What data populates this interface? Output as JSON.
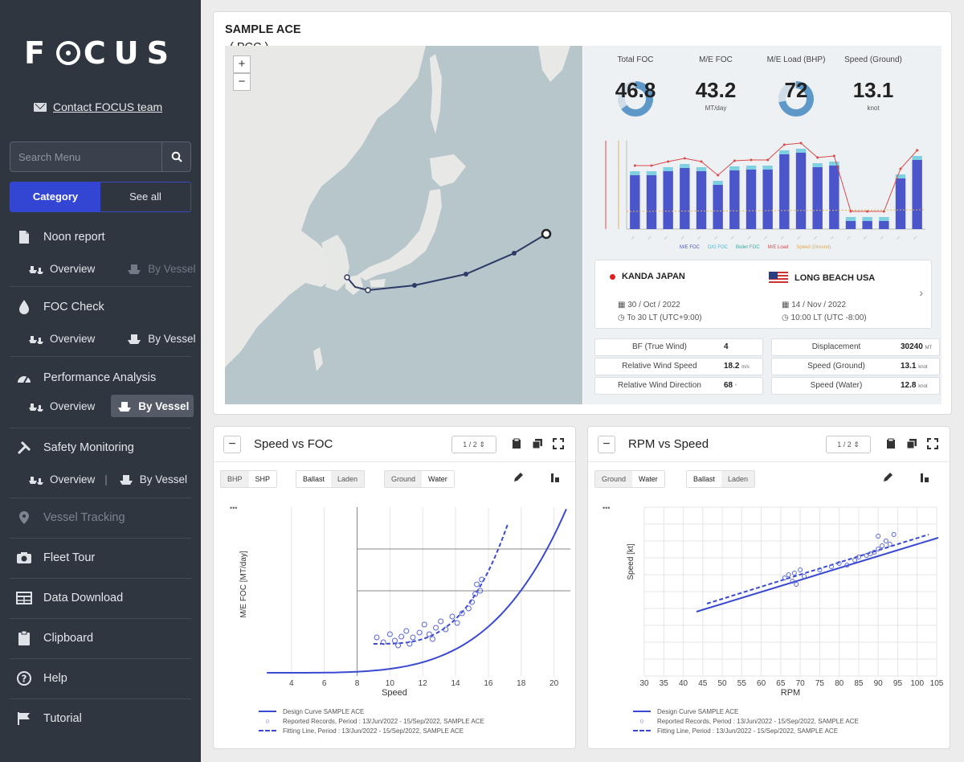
{
  "sidebar": {
    "logo": "FOCUS",
    "contact": "Contact FOCUS team",
    "search_placeholder": "Search Menu",
    "segment": {
      "active": "Category",
      "other": "See all"
    },
    "sections": [
      {
        "label": "Noon report",
        "overview": "Overview",
        "byvessel": "By Vessel"
      },
      {
        "label": "FOC Check",
        "overview": "Overview",
        "byvessel": "By Vessel"
      },
      {
        "label": "Performance Analysis",
        "overview": "Overview",
        "byvessel": "By Vessel"
      },
      {
        "label": "Safety Monitoring",
        "overview": "Overview",
        "byvessel": "By Vessel"
      }
    ],
    "items": [
      "Vessel Tracking",
      "Fleet Tour",
      "Data Download",
      "Clipboard",
      "Help",
      "Tutorial"
    ]
  },
  "vessel": {
    "name": "SAMPLE ACE",
    "type": "( PCC )"
  },
  "map": {
    "zoom_in": "+",
    "zoom_out": "−"
  },
  "stats": [
    {
      "label": "Total FOC",
      "value": "46.8",
      "unit": "MT/day",
      "ring": 0.65
    },
    {
      "label": "M/E FOC",
      "value": "43.2",
      "unit": "MT/day",
      "ring": null
    },
    {
      "label": "M/E Load (BHP)",
      "value": "72",
      "unit": "%",
      "ring": 0.72
    },
    {
      "label": "Speed (Ground)",
      "value": "13.1",
      "unit": "knot",
      "ring": null
    }
  ],
  "mini_chart": {
    "bars": [
      0.67,
      0.67,
      0.72,
      0.76,
      0.72,
      0.55,
      0.73,
      0.74,
      0.74,
      0.93,
      0.95,
      0.77,
      0.79,
      0.1,
      0.1,
      0.1,
      0.63,
      0.86
    ],
    "legend": [
      "M/E FOC",
      "D/G FOC",
      "Boiler FOC",
      "M/E Load",
      "Speed (Ground)"
    ]
  },
  "route": {
    "from": {
      "port": "KANDA  JAPAN",
      "date": "30 / Oct / 2022",
      "time": "To 30 LT (UTC+9:00)"
    },
    "to": {
      "port": "LONG BEACH  USA",
      "date": "14 / Nov / 2022",
      "time": "10:00 LT (UTC -8:00)"
    }
  },
  "info_left": [
    {
      "k": "BF (True Wind)",
      "v": "4",
      "u": ""
    },
    {
      "k": "Relative Wind Speed",
      "v": "18.2",
      "u": "m/s"
    },
    {
      "k": "Relative Wind Direction",
      "v": "68",
      "u": "°"
    }
  ],
  "info_right": [
    {
      "k": "Displacement",
      "v": "30240",
      "u": "MT"
    },
    {
      "k": "Speed (Ground)",
      "v": "13.1",
      "u": "knot"
    },
    {
      "k": "Speed (Water)",
      "v": "12.8",
      "u": "knot"
    }
  ],
  "speed_foc": {
    "title": "Speed vs FOC",
    "pager": "1 / 2",
    "toggles1": [
      "BHP",
      "SHP"
    ],
    "toggles2": [
      "Ballast",
      "Laden"
    ],
    "toggles3": [
      "Ground",
      "Water"
    ],
    "xlabel": "Speed",
    "ylabel": "M/E FOC [MT/day]",
    "xticks": [
      "4",
      "6",
      "8",
      "10",
      "12",
      "14",
      "16",
      "18",
      "20"
    ],
    "legend": [
      "Design Curve  SAMPLE ACE",
      "Reported Records, Period : 13/Jun/2022 - 15/Sep/2022, SAMPLE ACE",
      "Fitting Line, Period : 13/Jun/2022 - 15/Sep/2022, SAMPLE ACE"
    ]
  },
  "rpm_speed": {
    "title": "RPM vs Speed",
    "pager": "1 / 2",
    "toggles1": [
      "Ground",
      "Water"
    ],
    "toggles2": [
      "Ballast",
      "Laden"
    ],
    "xlabel": "RPM",
    "ylabel": "Speed [kt]",
    "xticks": [
      "30",
      "35",
      "40",
      "45",
      "50",
      "55",
      "60",
      "65",
      "70",
      "75",
      "80",
      "85",
      "90",
      "95",
      "100",
      "105"
    ],
    "legend": [
      "Design Curve  SAMPLE ACE",
      "Reported Records, Period : 13/Jun/2022 - 15/Sep/2022, SAMPLE ACE",
      "Fitting Line, Period : 13/Jun/2022 - 15/Sep/2022, SAMPLE ACE"
    ]
  }
}
